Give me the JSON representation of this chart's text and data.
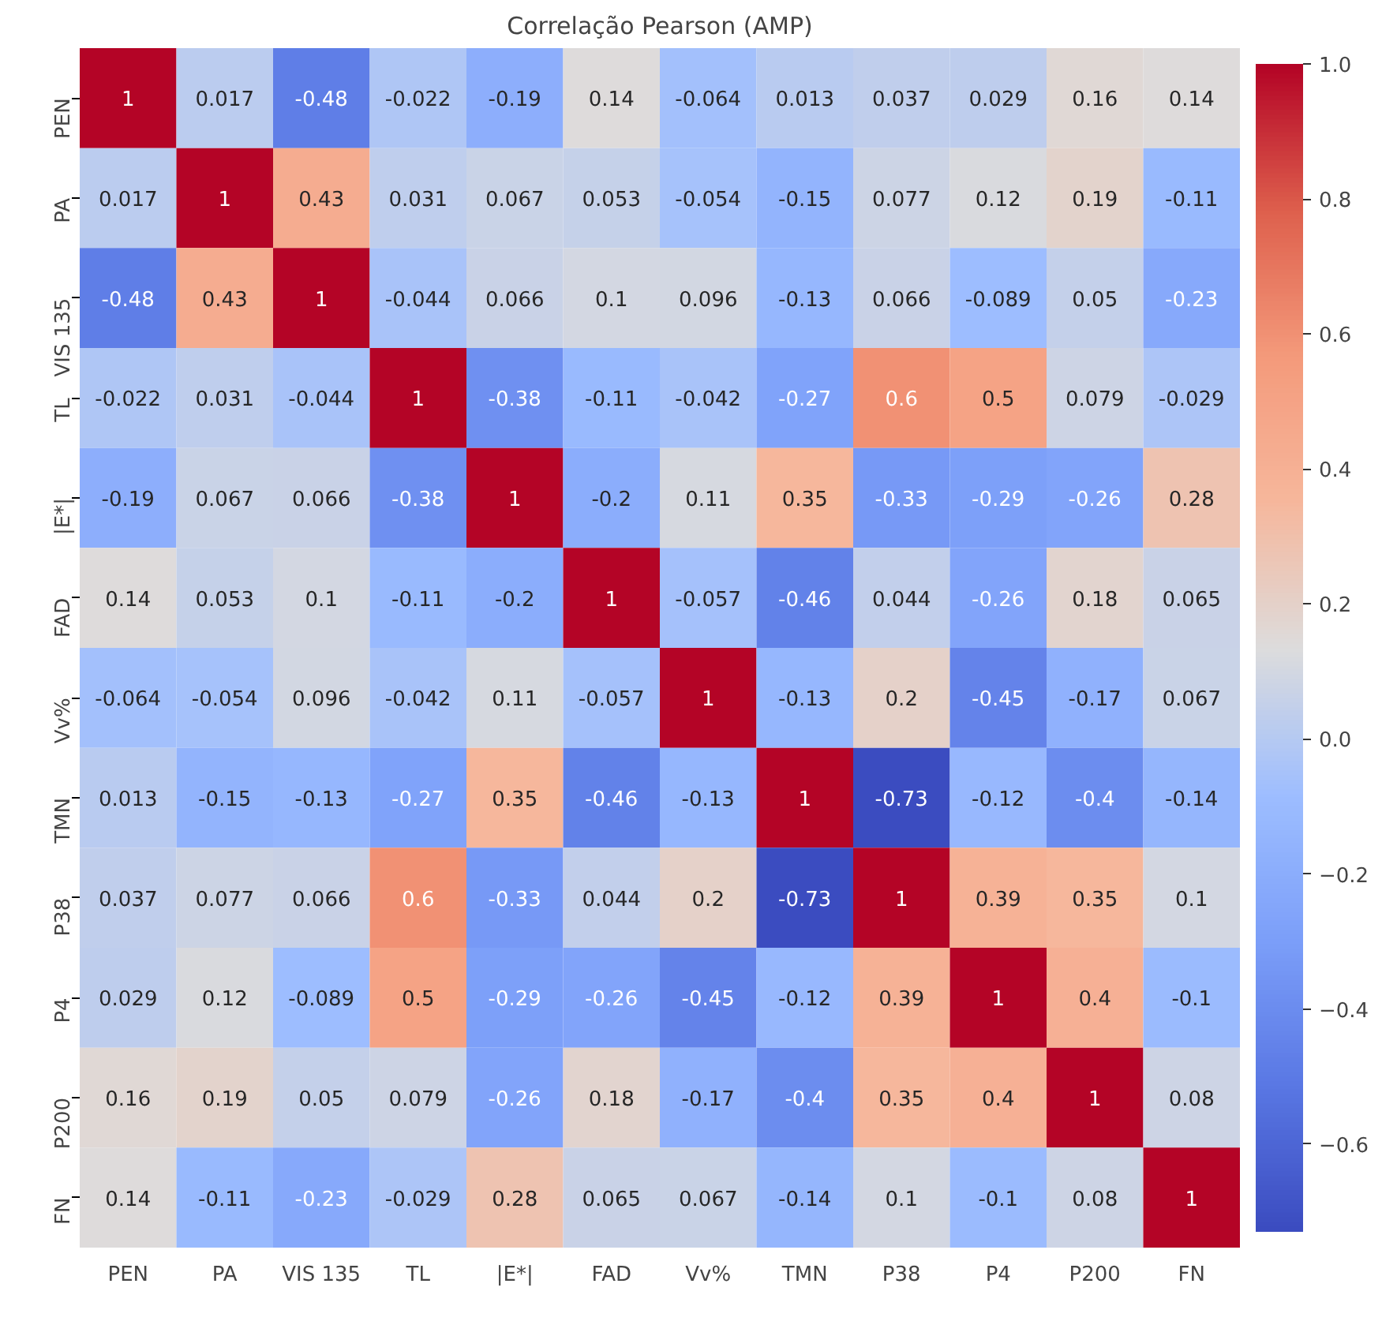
{
  "chart_data": {
    "type": "heatmap",
    "title": "Correlação Pearson (AMP)",
    "categories": [
      "PEN",
      "PA",
      "VIS 135",
      "TL",
      "|E*|",
      "FAD",
      "Vv%",
      "TMN",
      "P38",
      "P4",
      "P200",
      "FN"
    ],
    "y_categories": [
      "PEN",
      "PA",
      "VIS 135",
      "TL",
      "|E*|",
      "FAD",
      "Vv%",
      "TMN",
      "P38",
      "P4",
      "P200",
      "FN"
    ],
    "cells": [
      [
        1,
        0.017,
        -0.48,
        -0.022,
        -0.19,
        0.14,
        -0.064,
        0.013,
        0.037,
        0.029,
        0.16,
        0.14
      ],
      [
        0.017,
        1,
        0.43,
        0.031,
        0.067,
        0.053,
        -0.054,
        -0.15,
        0.077,
        0.12,
        0.19,
        -0.11
      ],
      [
        -0.48,
        0.43,
        1,
        -0.044,
        0.066,
        0.1,
        0.096,
        -0.13,
        0.066,
        -0.089,
        0.05,
        -0.23
      ],
      [
        -0.022,
        0.031,
        -0.044,
        1,
        -0.38,
        -0.11,
        -0.042,
        -0.27,
        0.6,
        0.5,
        0.079,
        -0.029
      ],
      [
        -0.19,
        0.067,
        0.066,
        -0.38,
        1,
        -0.2,
        0.11,
        0.35,
        -0.33,
        -0.29,
        -0.26,
        0.28
      ],
      [
        0.14,
        0.053,
        0.1,
        -0.11,
        -0.2,
        1,
        -0.057,
        -0.46,
        0.044,
        -0.26,
        0.18,
        0.065
      ],
      [
        -0.064,
        -0.054,
        0.096,
        -0.042,
        0.11,
        -0.057,
        1,
        -0.13,
        0.2,
        -0.45,
        -0.17,
        0.067
      ],
      [
        0.013,
        -0.15,
        -0.13,
        -0.27,
        0.35,
        -0.46,
        -0.13,
        1,
        -0.73,
        -0.12,
        -0.4,
        -0.14
      ],
      [
        0.037,
        0.077,
        0.066,
        0.6,
        -0.33,
        0.044,
        0.2,
        -0.73,
        1,
        0.39,
        0.35,
        0.1
      ],
      [
        0.029,
        0.12,
        -0.089,
        0.5,
        -0.29,
        -0.26,
        -0.45,
        -0.12,
        0.39,
        1,
        0.4,
        -0.1
      ],
      [
        0.16,
        0.19,
        0.05,
        0.079,
        -0.26,
        0.18,
        -0.17,
        -0.4,
        0.35,
        0.4,
        1,
        0.08
      ],
      [
        0.14,
        -0.11,
        -0.23,
        -0.029,
        0.28,
        0.065,
        0.067,
        -0.14,
        0.1,
        -0.1,
        0.08,
        1
      ]
    ],
    "clim": [
      -0.73,
      1
    ],
    "cticks": [
      {
        "value": -0.6,
        "label": "−0.6"
      },
      {
        "value": -0.4,
        "label": "−0.4"
      },
      {
        "value": -0.2,
        "label": "−0.2"
      },
      {
        "value": 0,
        "label": "0.0"
      },
      {
        "value": 0.2,
        "label": "0.2"
      },
      {
        "value": 0.4,
        "label": "0.4"
      },
      {
        "value": 0.6,
        "label": "0.6"
      },
      {
        "value": 0.8,
        "label": "0.8"
      },
      {
        "value": 1,
        "label": "1.0"
      }
    ],
    "data_labels": true,
    "grid": false
  }
}
